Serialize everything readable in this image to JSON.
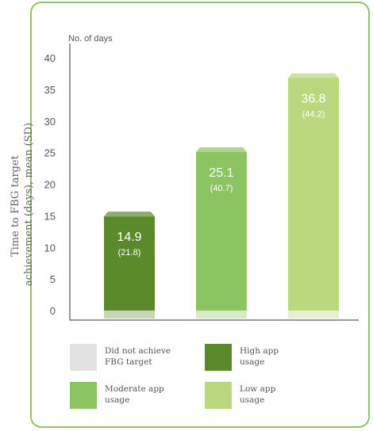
{
  "chart_data": {
    "type": "bar",
    "units_label": "No. of days",
    "ylabel_lines": [
      "Time to FBG target",
      "achievement (days), mean (SD)"
    ],
    "ylim": [
      0,
      40
    ],
    "yticks": [
      0,
      5,
      10,
      15,
      20,
      25,
      30,
      35,
      40
    ],
    "grid": false,
    "legend_position": "bottom",
    "bars": [
      {
        "category": "High app usage",
        "value": 14.9,
        "sd": 21.8,
        "label": "14.9",
        "sd_label": "(21.8)",
        "color": "#5b8a2a"
      },
      {
        "category": "Moderate app usage",
        "value": 25.1,
        "sd": 40.7,
        "label": "25.1",
        "sd_label": "(40.7)",
        "color": "#8cc461"
      },
      {
        "category": "Low app usage",
        "value": 36.8,
        "sd": 44.2,
        "label": "36.8",
        "sd_label": "(44.2)",
        "color": "#bad87e"
      }
    ]
  },
  "legend": [
    {
      "label_lines": [
        "Did not achieve",
        "FBG target"
      ],
      "color": "#e2e2e2"
    },
    {
      "label_lines": [
        "High app",
        "usage"
      ],
      "color": "#5b8a2a"
    },
    {
      "label_lines": [
        "Moderate app",
        "usage"
      ],
      "color": "#8cc461"
    },
    {
      "label_lines": [
        "Low app",
        "usage"
      ],
      "color": "#bad87e"
    }
  ],
  "colors": {
    "border": "#8cc46b",
    "axis": "#333333",
    "text": "#555555"
  }
}
